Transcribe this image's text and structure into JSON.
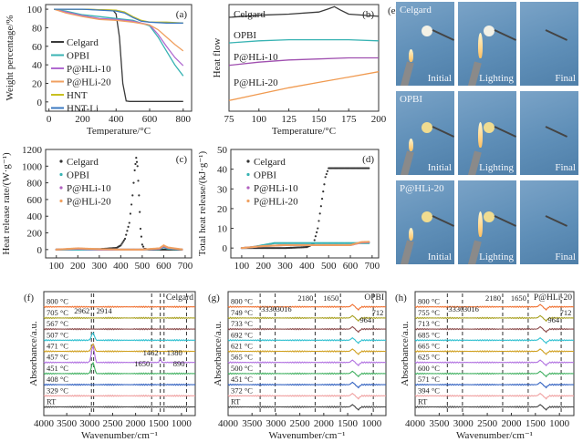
{
  "chart_data": [
    {
      "id": "a",
      "type": "line",
      "panel_label": "(a)",
      "xlabel": "Temperature/°C",
      "ylabel": "Weight percentage/%",
      "xlim": [
        -20,
        850
      ],
      "ylim": [
        -10,
        105
      ],
      "xticks": [
        0,
        200,
        400,
        600,
        800
      ],
      "yticks": [
        0,
        20,
        40,
        60,
        80,
        100
      ],
      "legend": "bottom-left",
      "series": [
        {
          "name": "Celgard",
          "color": "#3a3a3a",
          "x": [
            30,
            200,
            380,
            400,
            420,
            440,
            460,
            480,
            800
          ],
          "y": [
            100,
            100,
            99,
            95,
            70,
            20,
            1,
            0.5,
            0.5
          ]
        },
        {
          "name": "OPBI",
          "color": "#38b3b3",
          "x": [
            30,
            100,
            200,
            300,
            400,
            500,
            600,
            650,
            700,
            750,
            800
          ],
          "y": [
            100,
            98,
            94,
            92,
            90,
            88,
            82,
            70,
            55,
            40,
            28
          ]
        },
        {
          "name": "P@HLi-10",
          "color": "#b06ad0",
          "x": [
            30,
            100,
            200,
            300,
            400,
            500,
            600,
            650,
            700,
            750,
            800
          ],
          "y": [
            100,
            97,
            93,
            90,
            89,
            87,
            83,
            73,
            60,
            48,
            39
          ]
        },
        {
          "name": "P@HLi-20",
          "color": "#f0a060",
          "x": [
            30,
            100,
            200,
            300,
            400,
            500,
            600,
            650,
            700,
            750,
            800
          ],
          "y": [
            100,
            96,
            92,
            89,
            88,
            86,
            83,
            78,
            70,
            62,
            55
          ]
        },
        {
          "name": "HNT",
          "color": "#c8c020",
          "x": [
            30,
            200,
            400,
            450,
            500,
            550,
            600,
            700,
            800
          ],
          "y": [
            100,
            100,
            99,
            97,
            92,
            88,
            86,
            86,
            85
          ]
        },
        {
          "name": "HNT-Li",
          "color": "#3a78c0",
          "x": [
            30,
            200,
            400,
            450,
            500,
            550,
            600,
            700,
            800
          ],
          "y": [
            100,
            100,
            98,
            96,
            91,
            87,
            86,
            85,
            85
          ]
        }
      ]
    },
    {
      "id": "b",
      "type": "line",
      "panel_label": "(b)",
      "xlabel": "Temperature/°C",
      "ylabel": "Heat flow",
      "xlim": [
        75,
        200
      ],
      "ylim": [
        0,
        10
      ],
      "xticks": [
        75,
        100,
        125,
        150,
        175,
        200
      ],
      "yticks": [],
      "series": [
        {
          "name": "Celgard",
          "color": "#3a3a3a",
          "x": [
            75,
            100,
            125,
            150,
            158,
            163,
            168,
            175,
            200
          ],
          "y": [
            8.8,
            9.0,
            9.1,
            9.3,
            9.6,
            9.8,
            9.5,
            9.1,
            8.9
          ]
        },
        {
          "name": "OPBI",
          "color": "#38b3b3",
          "x": [
            75,
            100,
            125,
            150,
            175,
            200
          ],
          "y": [
            6.4,
            6.6,
            6.7,
            6.7,
            6.7,
            6.6
          ]
        },
        {
          "name": "P@HLi-10",
          "color": "#a050b0",
          "x": [
            75,
            100,
            125,
            150,
            175,
            200
          ],
          "y": [
            4.3,
            4.6,
            4.8,
            4.9,
            5.0,
            5.0
          ]
        },
        {
          "name": "P@HLi-20",
          "color": "#f09a50",
          "x": [
            75,
            100,
            125,
            150,
            175,
            200
          ],
          "y": [
            1.0,
            1.6,
            2.2,
            2.7,
            3.2,
            3.7
          ]
        }
      ]
    },
    {
      "id": "c",
      "type": "scatter",
      "panel_label": "(c)",
      "xlabel": "Temperature/°C",
      "ylabel": "Heat release rate/(W·g⁻¹)",
      "xlim": [
        50,
        730
      ],
      "ylim": [
        -100,
        1200
      ],
      "xticks": [
        100,
        200,
        300,
        400,
        500,
        600,
        700
      ],
      "yticks": [
        0,
        200,
        400,
        600,
        800,
        1000,
        1200
      ],
      "legend": "top-left",
      "series": [
        {
          "name": "Celgard",
          "color": "#333333",
          "x": [
            100,
            200,
            300,
            380,
            400,
            420,
            440,
            455,
            465,
            472,
            478,
            485,
            492,
            500,
            510,
            530,
            600,
            690
          ],
          "y": [
            0,
            5,
            5,
            20,
            50,
            130,
            320,
            650,
            950,
            1100,
            1000,
            650,
            250,
            60,
            10,
            0,
            0,
            0
          ]
        },
        {
          "name": "OPBI",
          "color": "#38b3b3",
          "x": [
            100,
            200,
            300,
            400,
            500,
            580,
            600,
            620,
            690
          ],
          "y": [
            0,
            0,
            0,
            0,
            0,
            5,
            30,
            10,
            0
          ]
        },
        {
          "name": "P@HLi-10",
          "color": "#b060c0",
          "x": [
            100,
            200,
            300,
            400,
            500,
            580,
            600,
            620,
            690
          ],
          "y": [
            0,
            10,
            0,
            0,
            0,
            10,
            40,
            20,
            0
          ]
        },
        {
          "name": "P@HLi-20",
          "color": "#f0a060",
          "x": [
            100,
            200,
            300,
            400,
            500,
            580,
            600,
            620,
            690
          ],
          "y": [
            0,
            15,
            5,
            0,
            0,
            15,
            50,
            25,
            0
          ]
        }
      ]
    },
    {
      "id": "d",
      "type": "scatter",
      "panel_label": "(d)",
      "xlabel": "Temperature/°C",
      "ylabel": "Total heat release/(kJ·g⁻¹)",
      "xlim": [
        50,
        730
      ],
      "ylim": [
        -5,
        50
      ],
      "xticks": [
        100,
        200,
        300,
        400,
        500,
        600,
        700
      ],
      "yticks": [
        0,
        10,
        20,
        30,
        40,
        50
      ],
      "legend": "top-left",
      "series": [
        {
          "name": "Celgard",
          "color": "#333333",
          "x": [
            100,
            300,
            400,
            430,
            450,
            470,
            485,
            500,
            600,
            690
          ],
          "y": [
            0,
            0,
            0.5,
            2,
            10,
            25,
            36,
            40.5,
            40.5,
            40.5
          ]
        },
        {
          "name": "OPBI",
          "color": "#38b3b3",
          "x": [
            100,
            150,
            250,
            400,
            500,
            600,
            690
          ],
          "y": [
            0,
            0.5,
            2.5,
            2.5,
            2.5,
            2.5,
            2.5
          ]
        },
        {
          "name": "P@HLi-10",
          "color": "#b060c0",
          "x": [
            100,
            200,
            300,
            400,
            500,
            600,
            650,
            690
          ],
          "y": [
            0,
            1,
            1.5,
            1.5,
            1.5,
            1.5,
            2.8,
            3
          ]
        },
        {
          "name": "P@HLi-20",
          "color": "#f0a060",
          "x": [
            100,
            200,
            300,
            400,
            500,
            600,
            650,
            690
          ],
          "y": [
            0,
            1,
            1.5,
            1.5,
            1.5,
            1.5,
            3,
            3.2
          ]
        }
      ]
    },
    {
      "id": "f",
      "type": "line",
      "panel_label": "(f)",
      "sample": "Celgard",
      "xlabel": "Wavenumber/cm⁻¹",
      "ylabel": "Absorbance/a.u.",
      "xlim": [
        4000,
        700
      ],
      "xticks": [
        4000,
        3500,
        3000,
        2500,
        2000,
        1500,
        1000
      ],
      "dashed_lines": [
        2962,
        2914,
        1650,
        1462,
        1380,
        890
      ],
      "annotations": [
        "2962",
        "2914",
        "1650",
        "1462",
        "1380",
        "890"
      ],
      "traces": [
        "800 °C",
        "705 °C",
        "567 °C",
        "507 °C",
        "471 °C",
        "457 °C",
        "451 °C",
        "408 °C",
        "329 °C",
        "RT"
      ]
    },
    {
      "id": "g",
      "type": "line",
      "panel_label": "(g)",
      "sample": "OPBI",
      "xlabel": "Wavenumber/cm⁻¹",
      "ylabel": "Absorbance/a.u.",
      "xlim": [
        4000,
        700
      ],
      "xticks": [
        4000,
        3500,
        3000,
        2500,
        2000,
        1500,
        1000
      ],
      "dashed_lines": [
        3330,
        3016,
        2180,
        1650,
        964
      ],
      "annotations": [
        "3330",
        "3016",
        "2180",
        "1650",
        "964",
        "712"
      ],
      "traces": [
        "800 °C",
        "749 °C",
        "733 °C",
        "692 °C",
        "621 °C",
        "565 °C",
        "500 °C",
        "451 °C",
        "372 °C",
        "RT"
      ]
    },
    {
      "id": "h",
      "type": "line",
      "panel_label": "(h)",
      "sample": "P@HLi-20",
      "xlabel": "Wavenumber/cm⁻¹",
      "ylabel": "Absorbance/a.u.",
      "xlim": [
        4000,
        700
      ],
      "xticks": [
        4000,
        3500,
        3000,
        2500,
        2000,
        1500,
        1000
      ],
      "dashed_lines": [
        3330,
        3016,
        2180,
        1650,
        964
      ],
      "annotations": [
        "3330",
        "3016",
        "2180",
        "1650",
        "964",
        "712"
      ],
      "traces": [
        "800 °C",
        "755 °C",
        "713 °C",
        "685 °C",
        "665 °C",
        "625 °C",
        "600 °C",
        "571 °C",
        "394 °C",
        "RT"
      ]
    }
  ],
  "ftir_colors": [
    "#f07030",
    "#a8a020",
    "#8a4a4a",
    "#30c0d0",
    "#d0a020",
    "#b070e0",
    "#40b060",
    "#3060c0",
    "#f0a0a0",
    "#404040"
  ],
  "photos": {
    "panel_label": "(e)",
    "rows": [
      {
        "sample": "Celgard",
        "captions": [
          "Initial",
          "Lighting",
          "Final"
        ]
      },
      {
        "sample": "OPBI",
        "captions": [
          "Initial",
          "Lighting",
          "Final"
        ]
      },
      {
        "sample": "P@HLi-20",
        "captions": [
          "Initial",
          "Lighting",
          "Final"
        ]
      }
    ]
  }
}
